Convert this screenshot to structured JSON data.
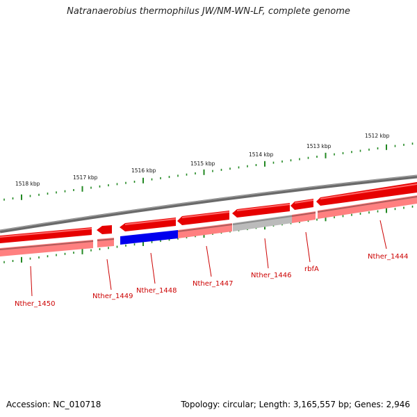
{
  "title": "Natranaerobius thermophilus JW/NM-WN-LF, complete genome",
  "footer": {
    "accession": "Accession: NC_010718",
    "topology": "Topology: circular; Length: 3,165,557 bp; Genes: 2,946"
  },
  "colors": {
    "backbone": "#777777",
    "gene_forward": "#e60000",
    "gene_reverse": "#ff8080",
    "gene_highlight": "#0000ee",
    "gene_gray": "#bbbbbb",
    "tick": "#228822",
    "label": "#cc0000"
  },
  "scale_ticks": [
    {
      "label": "1518 kbp"
    },
    {
      "label": "1517 kbp"
    },
    {
      "label": "1516 kbp"
    },
    {
      "label": "1515 kbp"
    },
    {
      "label": "1514 kbp"
    },
    {
      "label": "1513 kbp"
    },
    {
      "label": "1512 kbp"
    }
  ],
  "genes": [
    {
      "label": "Nther_1450"
    },
    {
      "label": "Nther_1449"
    },
    {
      "label": "Nther_1448"
    },
    {
      "label": "Nther_1447"
    },
    {
      "label": "Nther_1446"
    },
    {
      "label": "rbfA"
    },
    {
      "label": "Nther_1444"
    }
  ]
}
